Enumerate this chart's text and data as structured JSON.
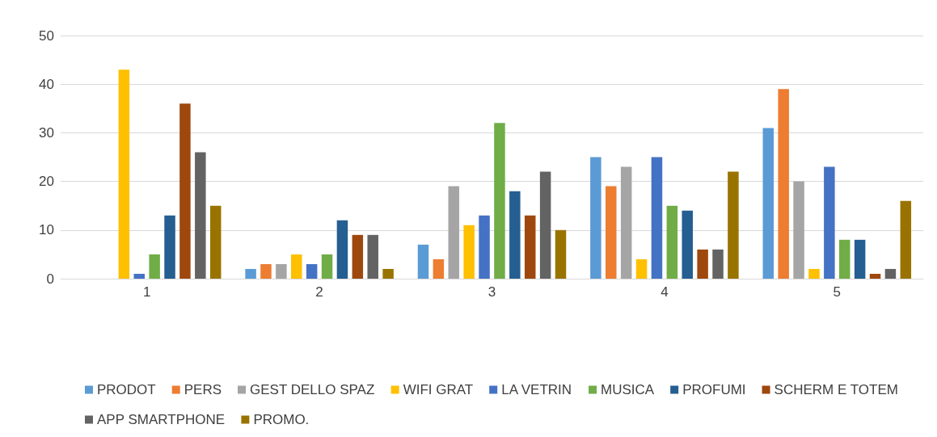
{
  "chart_data": {
    "type": "bar",
    "categories": [
      "1",
      "2",
      "3",
      "4",
      "5"
    ],
    "ylim": [
      0,
      50
    ],
    "yticks": [
      0,
      10,
      20,
      30,
      40,
      50
    ],
    "grid": "y",
    "legend": "bottom",
    "series": [
      {
        "name": "PRODOT",
        "color": "#5b9bd5",
        "values": [
          0,
          2,
          7,
          25,
          31
        ]
      },
      {
        "name": "PERS",
        "color": "#ed7d31",
        "values": [
          0,
          3,
          4,
          19,
          39
        ]
      },
      {
        "name": "GEST DELLO SPAZ",
        "color": "#a5a5a5",
        "values": [
          0,
          3,
          19,
          23,
          20
        ]
      },
      {
        "name": "WIFI GRAT",
        "color": "#ffc000",
        "values": [
          43,
          5,
          11,
          4,
          2
        ]
      },
      {
        "name": "LA VETRIN",
        "color": "#4472c4",
        "values": [
          1,
          3,
          13,
          25,
          23
        ]
      },
      {
        "name": "MUSICA",
        "color": "#70ad47",
        "values": [
          5,
          5,
          32,
          15,
          8
        ]
      },
      {
        "name": "PROFUMI",
        "color": "#255e91",
        "values": [
          13,
          12,
          18,
          14,
          8
        ]
      },
      {
        "name": "SCHERM E TOTEM",
        "color": "#9e480e",
        "values": [
          36,
          9,
          13,
          6,
          1
        ]
      },
      {
        "name": "APP SMARTPHONE",
        "color": "#636363",
        "values": [
          26,
          9,
          22,
          6,
          2
        ]
      },
      {
        "name": "PROMO.",
        "color": "#997300",
        "values": [
          15,
          2,
          10,
          22,
          16
        ]
      }
    ]
  }
}
